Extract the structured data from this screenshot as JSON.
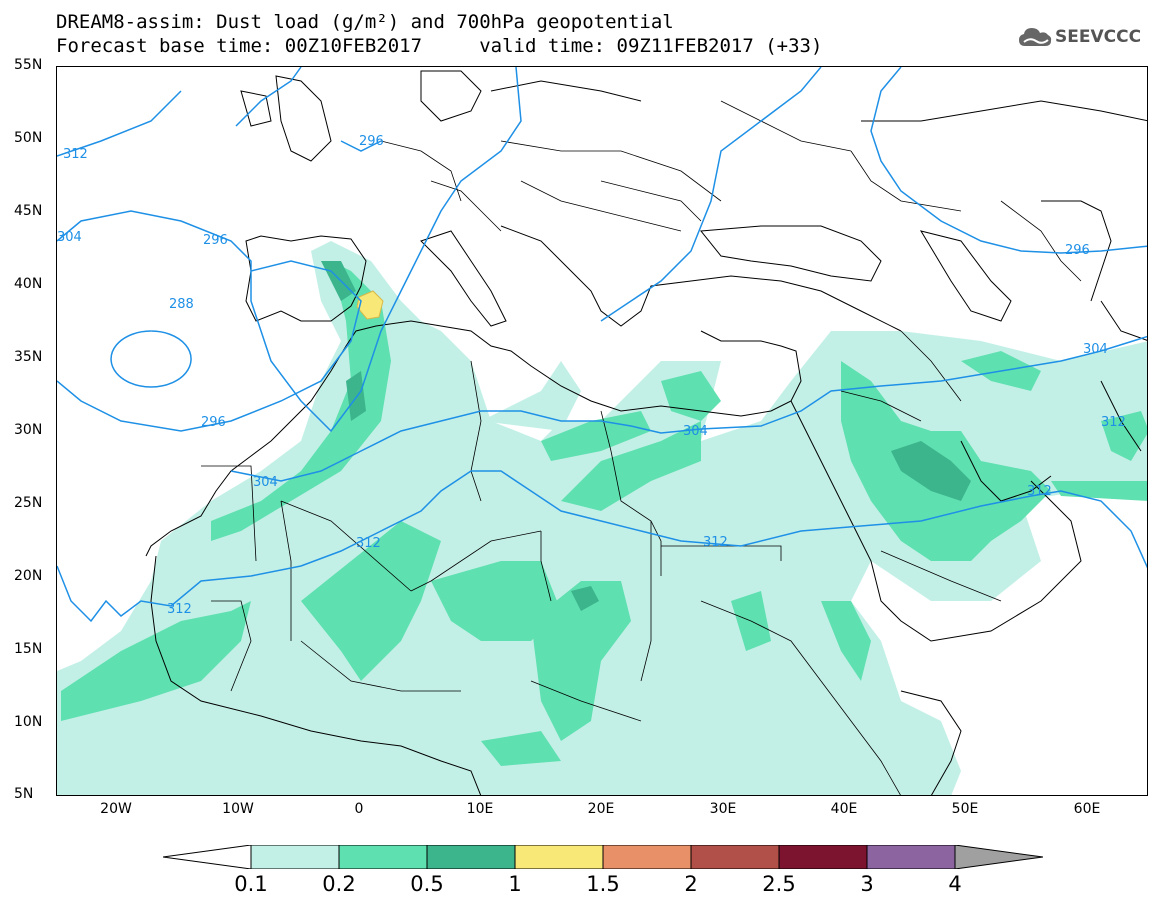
{
  "title_line1": "DREAM8-assim: Dust load (g/m²) and 700hPa geopotential",
  "title_line2": "Forecast base time: 00Z10FEB2017     valid time: 09Z11FEB2017 (+33)",
  "logo_text": "SEEVCCC",
  "lat_labels": [
    "55N",
    "50N",
    "45N",
    "40N",
    "35N",
    "30N",
    "25N",
    "20N",
    "15N",
    "10N",
    "5N"
  ],
  "lon_labels": [
    "20W",
    "10W",
    "0",
    "10E",
    "20E",
    "30E",
    "40E",
    "50E",
    "60E"
  ],
  "contour_labels": [
    "312",
    "296",
    "288",
    "296",
    "304",
    "312",
    "312",
    "304",
    "312",
    "296",
    "304",
    "312",
    "296",
    "304",
    "312"
  ],
  "colorbar": {
    "labels": [
      "0.1",
      "0.2",
      "0.5",
      "1",
      "1.5",
      "2",
      "2.5",
      "3",
      "4"
    ],
    "colors": [
      "#c3f0e6",
      "#5ee0b0",
      "#3cb48c",
      "#f8e878",
      "#e89068",
      "#b05048",
      "#7c1430",
      "#8c64a0",
      "#a0a0a0"
    ],
    "under_color": "#ffffff"
  },
  "chart_data": {
    "type": "heatmap",
    "title": "DREAM8-assim: Dust load (g/m²) and 700hPa geopotential",
    "base_time": "00Z10FEB2017",
    "valid_time": "09Z11FEB2017 (+33)",
    "lon_range": [
      -25,
      65
    ],
    "lat_range": [
      5,
      55
    ],
    "levels": [
      0.1,
      0.2,
      0.5,
      1,
      1.5,
      2,
      2.5,
      3,
      4
    ],
    "geopotential_contour_values": [
      288,
      296,
      304,
      312
    ]
  }
}
